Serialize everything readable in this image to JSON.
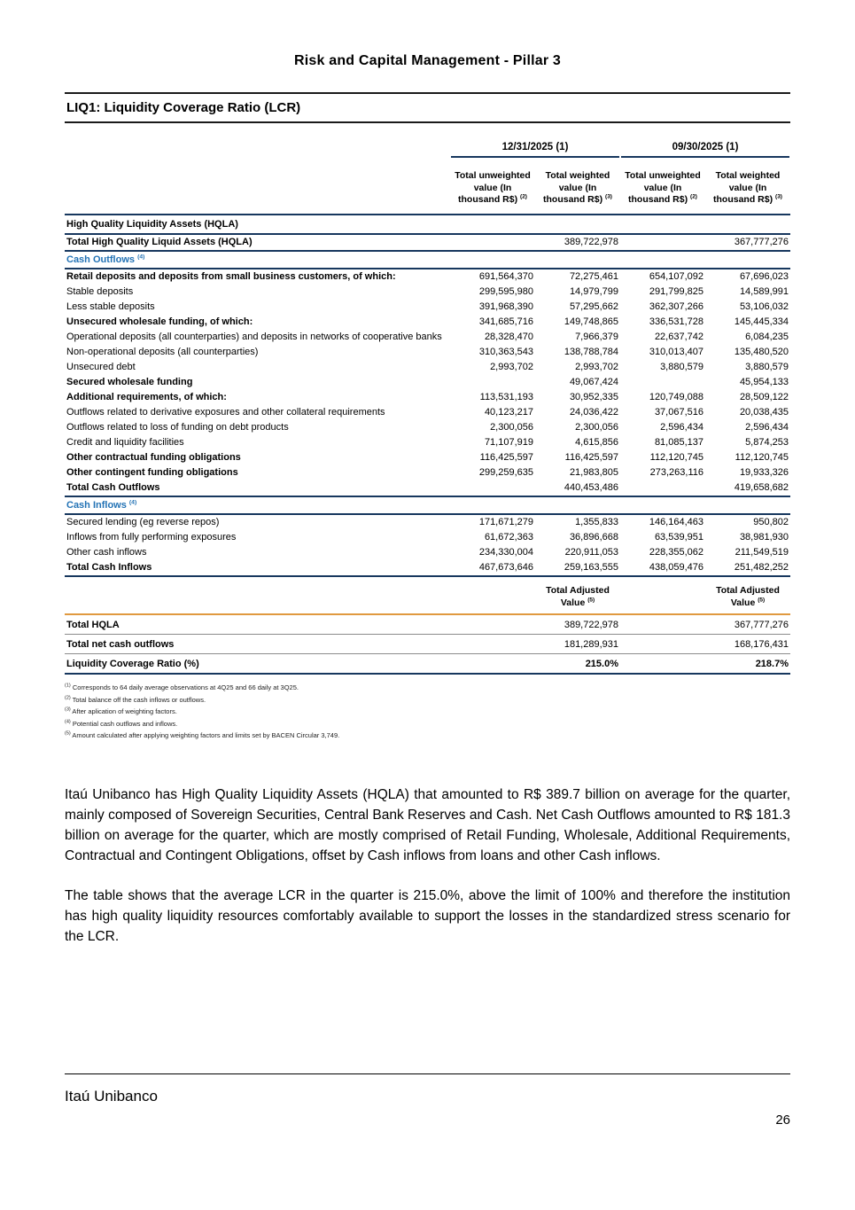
{
  "page": {
    "header_title": "Risk and Capital Management - Pillar 3",
    "section_title": "LIQ1: Liquidity Coverage Ratio (LCR)",
    "footer_brand": "Itaú Unibanco",
    "page_number": "26"
  },
  "colors": {
    "navy_rule": "#17375e",
    "subsection_blue": "#2272b5",
    "orange_rule": "#e0993f"
  },
  "table": {
    "period_headers": [
      {
        "label": "12/31/2025 (1)"
      },
      {
        "label": "09/30/2025 (1)"
      }
    ],
    "column_headers": [
      {
        "text": "Total unweighted value (In thousand R$)",
        "sup": "(2)"
      },
      {
        "text": "Total weighted value (In thousand R$)",
        "sup": "(3)"
      },
      {
        "text": "Total unweighted value (In thousand R$)",
        "sup": "(2)"
      },
      {
        "text": "Total weighted value (In thousand R$)",
        "sup": "(3)"
      }
    ],
    "rows": [
      {
        "label": "High Quality Liquidity Assets (HQLA)",
        "style": "section",
        "values": [
          "",
          "",
          "",
          ""
        ]
      },
      {
        "label": "Total High Quality Liquid Assets (HQLA)",
        "style": "bold",
        "values": [
          "",
          "389,722,978",
          "",
          "367,777,276"
        ]
      },
      {
        "label": "Cash Outflows",
        "sup": "(4)",
        "style": "subsection",
        "values": [
          "",
          "",
          "",
          ""
        ]
      },
      {
        "label": "Retail deposits and deposits from small business customers, of which:",
        "style": "bold",
        "values": [
          "691,564,370",
          "72,275,461",
          "654,107,092",
          "67,696,023"
        ]
      },
      {
        "label": "Stable deposits",
        "style": "normal",
        "values": [
          "299,595,980",
          "14,979,799",
          "291,799,825",
          "14,589,991"
        ]
      },
      {
        "label": "Less stable deposits",
        "style": "normal",
        "values": [
          "391,968,390",
          "57,295,662",
          "362,307,266",
          "53,106,032"
        ]
      },
      {
        "label": "Unsecured wholesale funding, of which:",
        "style": "bold",
        "values": [
          "341,685,716",
          "149,748,865",
          "336,531,728",
          "145,445,334"
        ]
      },
      {
        "label": "Operational deposits (all counterparties) and deposits in networks of cooperative banks",
        "style": "normal",
        "values": [
          "28,328,470",
          "7,966,379",
          "22,637,742",
          "6,084,235"
        ]
      },
      {
        "label": "Non-operational deposits (all counterparties)",
        "style": "normal",
        "values": [
          "310,363,543",
          "138,788,784",
          "310,013,407",
          "135,480,520"
        ]
      },
      {
        "label": "Unsecured debt",
        "style": "normal",
        "values": [
          "2,993,702",
          "2,993,702",
          "3,880,579",
          "3,880,579"
        ]
      },
      {
        "label": "Secured wholesale funding",
        "style": "bold",
        "values": [
          "",
          "49,067,424",
          "",
          "45,954,133"
        ]
      },
      {
        "label": "Additional requirements, of which:",
        "style": "bold",
        "values": [
          "113,531,193",
          "30,952,335",
          "120,749,088",
          "28,509,122"
        ]
      },
      {
        "label": "Outflows related to derivative exposures and other collateral requirements",
        "style": "normal",
        "values": [
          "40,123,217",
          "24,036,422",
          "37,067,516",
          "20,038,435"
        ]
      },
      {
        "label": "Outflows related to loss of funding on debt products",
        "style": "normal",
        "values": [
          "2,300,056",
          "2,300,056",
          "2,596,434",
          "2,596,434"
        ]
      },
      {
        "label": "Credit and liquidity facilities",
        "style": "normal",
        "values": [
          "71,107,919",
          "4,615,856",
          "81,085,137",
          "5,874,253"
        ]
      },
      {
        "label": "Other contractual funding obligations",
        "style": "bold",
        "values": [
          "116,425,597",
          "116,425,597",
          "112,120,745",
          "112,120,745"
        ]
      },
      {
        "label": "Other contingent funding obligations",
        "style": "bold",
        "values": [
          "299,259,635",
          "21,983,805",
          "273,263,116",
          "19,933,326"
        ]
      },
      {
        "label": "Total Cash Outflows",
        "style": "bold",
        "values": [
          "",
          "440,453,486",
          "",
          "419,658,682"
        ]
      },
      {
        "label": "Cash Inflows",
        "sup": "(4)",
        "style": "subsection",
        "values": [
          "",
          "",
          "",
          ""
        ]
      },
      {
        "label": "Secured lending (eg reverse repos)",
        "style": "normal",
        "values": [
          "171,671,279",
          "1,355,833",
          "146,164,463",
          "950,802"
        ]
      },
      {
        "label": "Inflows from fully performing exposures",
        "style": "normal",
        "values": [
          "61,672,363",
          "36,896,668",
          "63,539,951",
          "38,981,930"
        ]
      },
      {
        "label": "Other cash inflows",
        "style": "normal",
        "values": [
          "234,330,004",
          "220,911,053",
          "228,355,062",
          "211,549,519"
        ]
      },
      {
        "label": "Total Cash Inflows",
        "style": "total",
        "values": [
          "467,673,646",
          "259,163,555",
          "438,059,476",
          "251,482,252"
        ]
      }
    ],
    "adjusted_header": {
      "text": "Total Adjusted Value",
      "sup": "(5)"
    },
    "summary_rows": [
      {
        "label": "Total HQLA",
        "values": [
          "389,722,978",
          "367,777,276"
        ],
        "bold_values": false
      },
      {
        "label": "Total net cash outflows",
        "values": [
          "181,289,931",
          "168,176,431"
        ],
        "bold_values": false
      },
      {
        "label": "Liquidity Coverage Ratio (%)",
        "values": [
          "215.0%",
          "218.7%"
        ],
        "bold_values": true
      }
    ]
  },
  "footnotes": [
    {
      "sup": "(1)",
      "text": "Corresponds to 64 daily average observations at 4Q25 and 66 daily at 3Q25."
    },
    {
      "sup": "(2)",
      "text": "Total balance off the cash inflows or outflows."
    },
    {
      "sup": "(3)",
      "text": "After aplication of weighting factors."
    },
    {
      "sup": "(4)",
      "text": "Potential cash outflows and inflows."
    },
    {
      "sup": "(5)",
      "text": "Amount calculated after applying weighting factors and limits set by BACEN Circular 3,749."
    }
  ],
  "paragraphs": [
    "Itaú Unibanco has High Quality Liquidity Assets (HQLA) that amounted to R$ 389.7 billion on average for the quarter, mainly composed of Sovereign Securities, Central Bank Reserves and Cash. Net Cash Outflows amounted to R$ 181.3 billion on average for the quarter, which are mostly comprised of Retail Funding, Wholesale, Additional Requirements, Contractual and Contingent Obligations, offset by Cash inflows from loans and other Cash inflows.",
    "The table shows that the average LCR in the quarter is 215.0%, above the limit of 100% and therefore the institution has high quality liquidity resources comfortably available to support the losses in the standardized stress scenario for the LCR."
  ]
}
